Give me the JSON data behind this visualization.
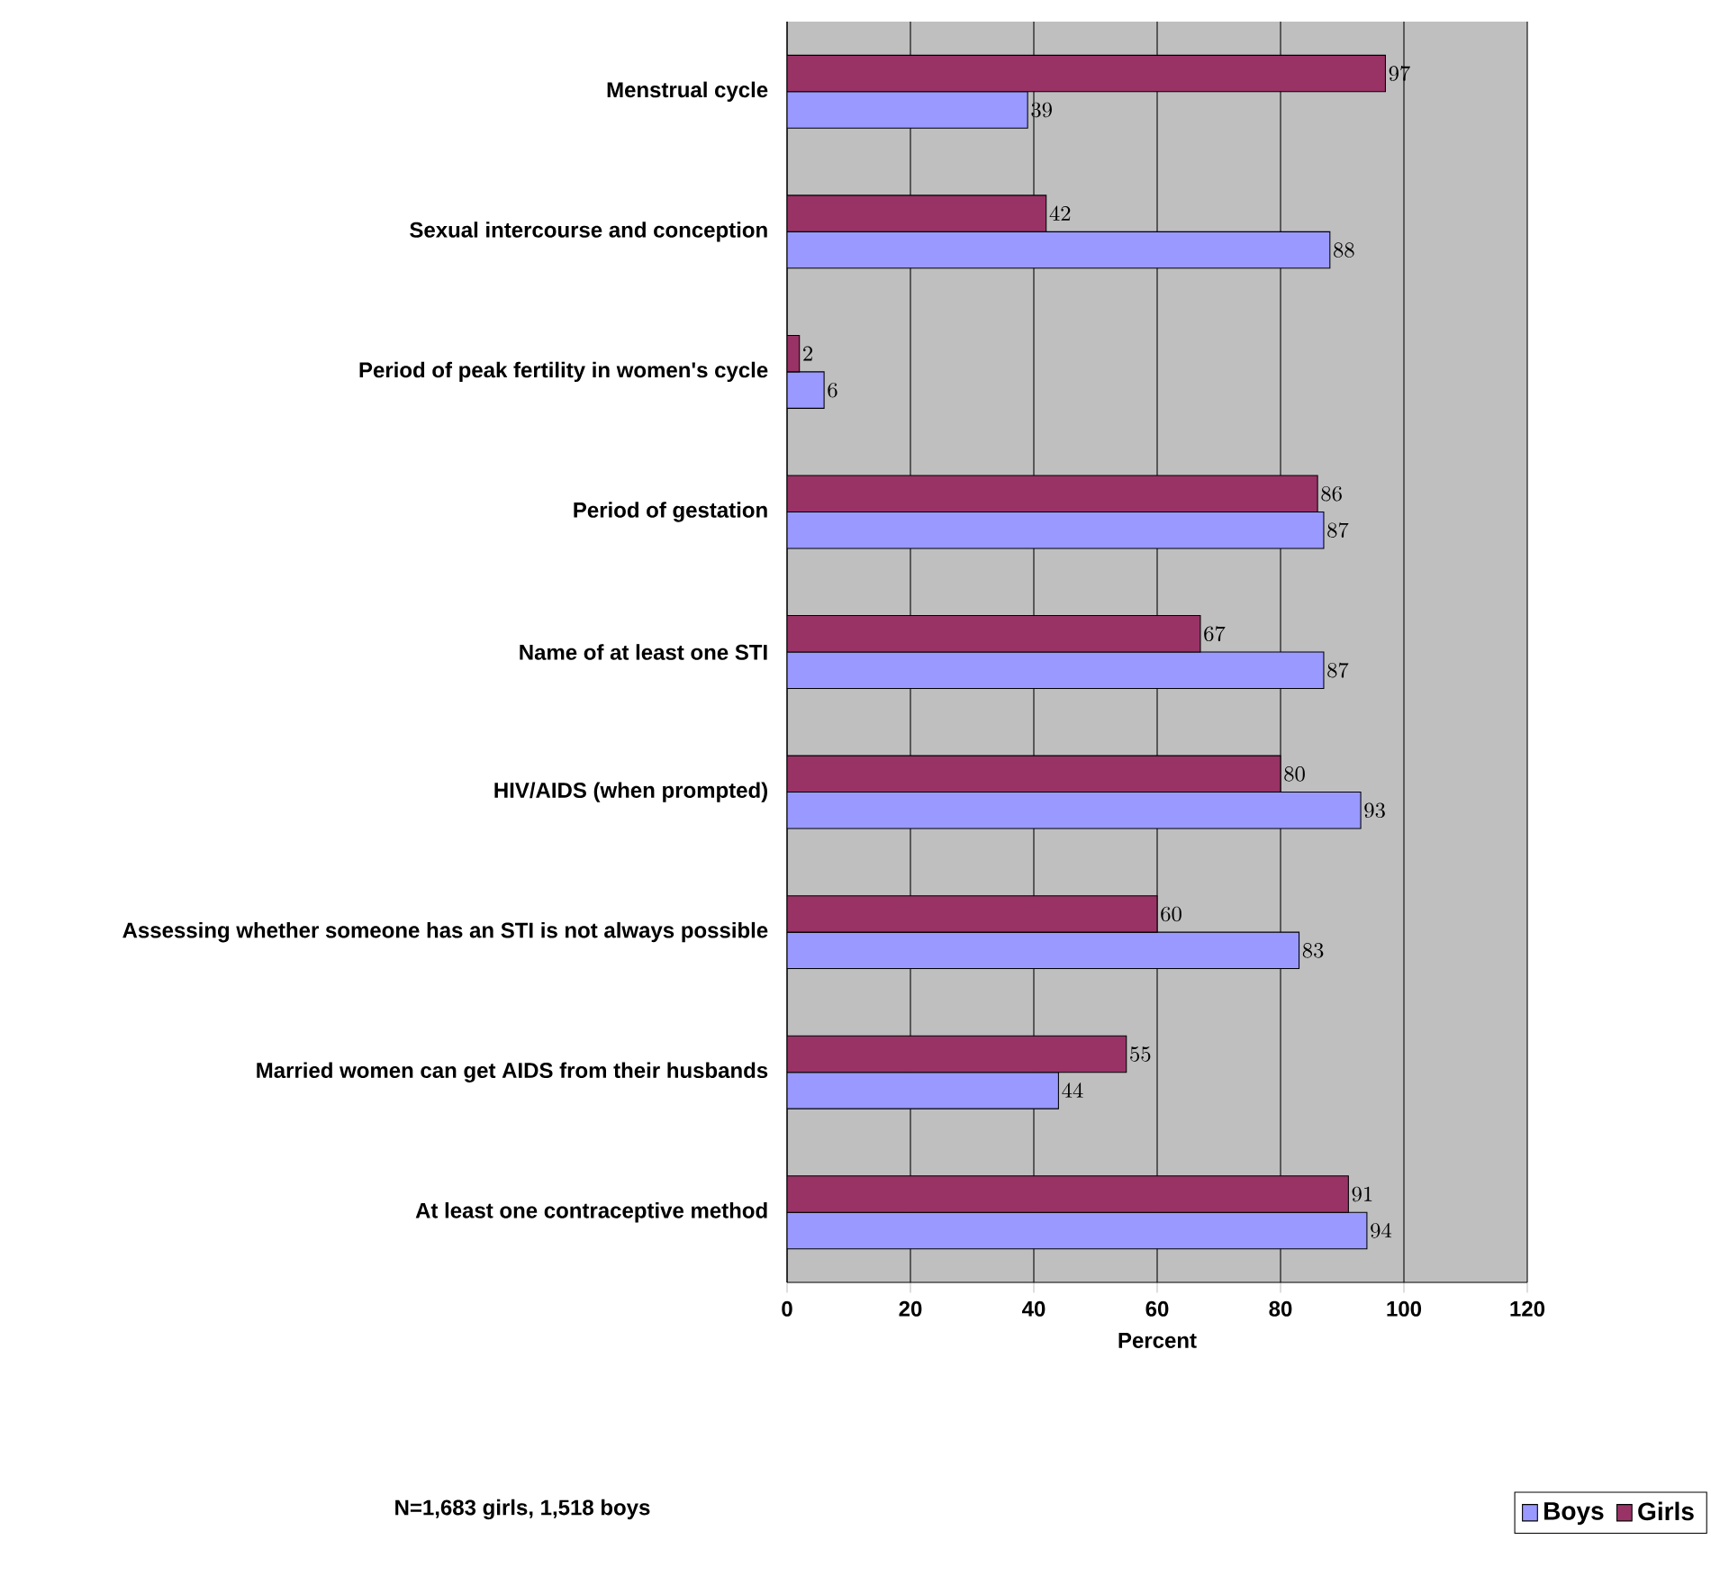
{
  "chart_data": {
    "type": "bar",
    "orientation": "horizontal",
    "categories": [
      "Menstrual cycle",
      "Sexual intercourse and conception",
      "Period of peak fertility in women's cycle",
      "Period of gestation",
      "Name of at least one STI",
      "HIV/AIDS (when prompted)",
      "Assessing whether someone has an STI is not always possible",
      "Married women can get AIDS from their husbands",
      "At least one contraceptive method"
    ],
    "series": [
      {
        "name": "Boys",
        "color": "#9999ff",
        "values": [
          39,
          88,
          6,
          87,
          87,
          93,
          83,
          44,
          94
        ]
      },
      {
        "name": "Girls",
        "color": "#993366",
        "values": [
          97,
          42,
          2,
          86,
          67,
          80,
          60,
          55,
          91
        ]
      }
    ],
    "xlabel": "Percent",
    "xlim": [
      0,
      120
    ],
    "xticks": [
      0,
      20,
      40,
      60,
      80,
      100,
      120
    ],
    "grid": "x",
    "legend": "bottom right",
    "data_labels": true,
    "annotations": [
      "N=1,683 girls, 1,518 boys"
    ]
  }
}
